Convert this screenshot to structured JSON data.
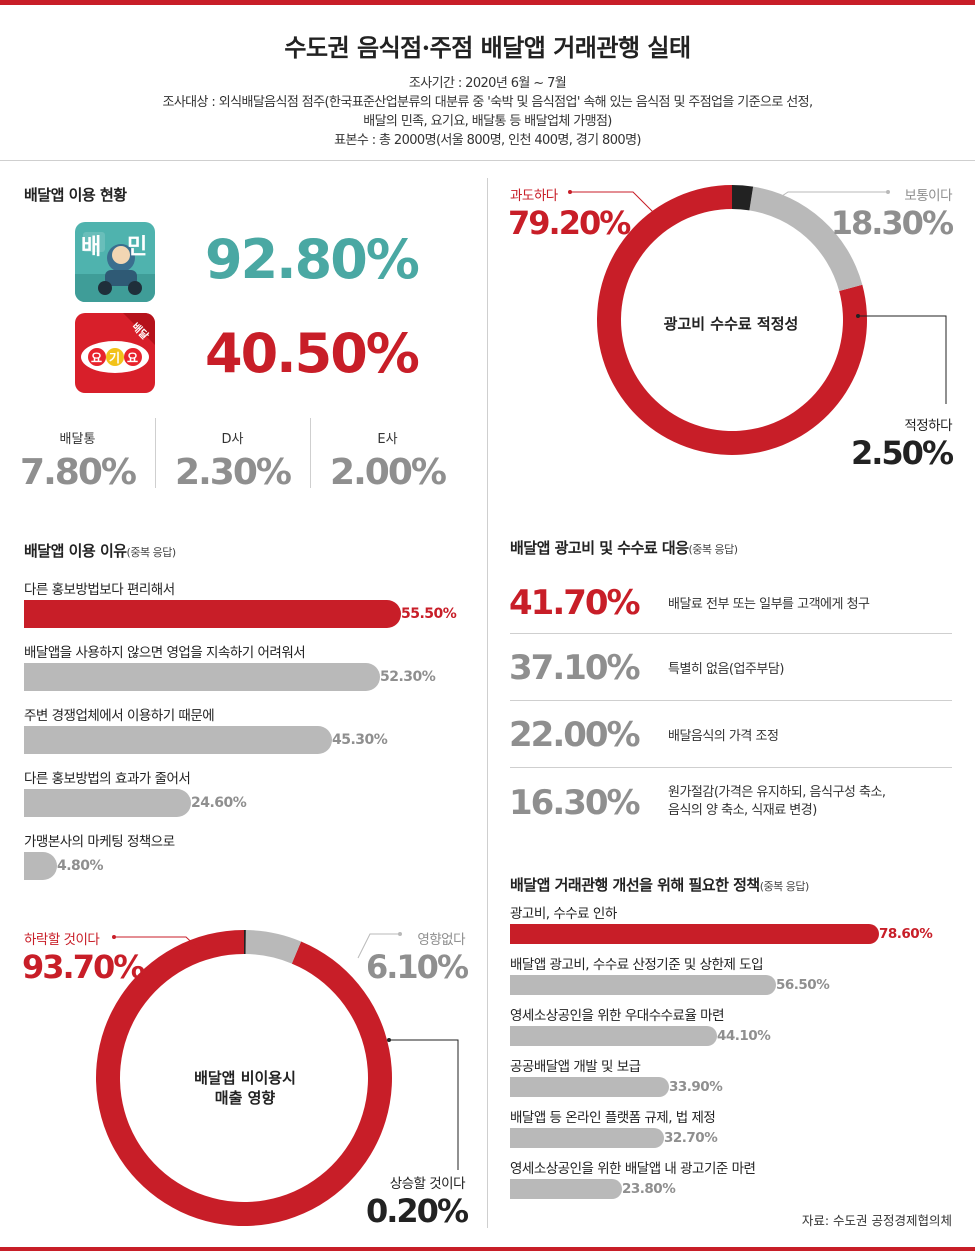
{
  "title": "수도권 음식점·주점 배달앱 거래관행 실태",
  "meta": {
    "period": "조사기간 : 2020년 6월 ~ 7월",
    "target_line1": "조사대상 : 외식배달음식점 점주(한국표준산업분류의 대분류 중 '숙박 및 음식점업' 속해 있는 음식점 및 주점업을 기준으로 선정,",
    "target_line2": "배달의 민족, 요기요, 배달통 등 배달업체 가맹점)",
    "sample": "표본수 : 총 2000명(서울 800명, 인천 400명, 경기 800명)"
  },
  "usage": {
    "title": "배달앱 이용 현황",
    "baemin": {
      "pct": "92.80%",
      "value": 92.8,
      "color": "#4aa8a3",
      "icon": "baemin-app-icon",
      "icon_text": "배민"
    },
    "yogiyo": {
      "pct": "40.50%",
      "value": 40.5,
      "color": "#c81e28",
      "icon": "yogiyo-app-icon",
      "icon_badge": "배달",
      "icon_chars": [
        "요",
        "기",
        "요"
      ]
    },
    "others": [
      {
        "label": "배달통",
        "pct": "7.80%",
        "value": 7.8
      },
      {
        "label": "D사",
        "pct": "2.30%",
        "value": 2.3
      },
      {
        "label": "E사",
        "pct": "2.00%",
        "value": 2.0
      }
    ]
  },
  "reasons": {
    "title": "배달앱 이용 이유",
    "note": "(중복 응답)"
  },
  "impact": {
    "center_line1": "배달앱 비이용시",
    "center_line2": "매출 영향",
    "fall": {
      "label": "하락할 것이다",
      "pct": "93.70%"
    },
    "none": {
      "label": "영향없다",
      "pct": "6.10%"
    },
    "rise": {
      "label": "상승할 것이다",
      "pct": "0.20%"
    }
  },
  "fee": {
    "center": "광고비 수수료 적정성",
    "excessive": {
      "label": "과도하다",
      "pct": "79.20%"
    },
    "normal": {
      "label": "보통이다",
      "pct": "18.30%"
    },
    "adequate": {
      "label": "적정하다",
      "pct": "2.50%"
    }
  },
  "response": {
    "title": "배달앱 광고비 및 수수료 대응",
    "note": "(중복 응답)",
    "items": [
      {
        "pct": "41.70%",
        "text1": "배달료 전부 또는 일부를 고객에게 청구",
        "text2": "",
        "color": "#c81e28"
      },
      {
        "pct": "37.10%",
        "text1": "특별히 없음(업주부담)",
        "text2": "",
        "color": "#8f8f8f"
      },
      {
        "pct": "22.00%",
        "text1": "배달음식의 가격 조정",
        "text2": "",
        "color": "#8f8f8f"
      },
      {
        "pct": "16.30%",
        "text1": "원가절감(가격은 유지하되, 음식구성 축소,",
        "text2": "음식의 양 축소, 식재료 변경)",
        "color": "#8f8f8f"
      }
    ]
  },
  "policy": {
    "title": "배달앱 거래관행 개선을 위해  필요한 정책",
    "note": "(중복 응답)"
  },
  "source": "자료: 수도권 공정경제협의체",
  "colors": {
    "red": "#c81e28",
    "gray": "#b9b9b9",
    "teal": "#4aa8a3",
    "dark": "#222222"
  },
  "chart_data": [
    {
      "type": "bar",
      "title": "배달앱 이용 현황",
      "categories": [
        "배달의 민족",
        "요기요",
        "배달통",
        "D사",
        "E사"
      ],
      "values": [
        92.8,
        40.5,
        7.8,
        2.3,
        2.0
      ]
    },
    {
      "type": "bar",
      "title": "배달앱 이용 이유",
      "categories": [
        "다른 홍보방법보다 편리해서",
        "배달앱을 사용하지 않으면 영업을 지속하기 어려워서",
        "주변 경쟁업체에서 이용하기 때문에",
        "다른 홍보방법의 효과가 줄어서",
        "가맹본사의 마케팅 정책으로"
      ],
      "values": [
        55.5,
        52.3,
        45.3,
        24.6,
        4.8
      ],
      "labels": [
        "55.50%",
        "52.30%",
        "45.30%",
        "24.60%",
        "4.80%"
      ]
    },
    {
      "type": "pie",
      "title": "배달앱 비이용시 매출 영향",
      "categories": [
        "하락할 것이다",
        "영향없다",
        "상승할 것이다"
      ],
      "values": [
        93.7,
        6.1,
        0.2
      ],
      "colors": [
        "#c81e28",
        "#b9b9b9",
        "#222222"
      ]
    },
    {
      "type": "pie",
      "title": "광고비 수수료 적정성",
      "categories": [
        "과도하다",
        "보통이다",
        "적정하다"
      ],
      "values": [
        79.2,
        18.3,
        2.5
      ],
      "colors": [
        "#c81e28",
        "#b9b9b9",
        "#222222"
      ]
    },
    {
      "type": "table",
      "title": "배달앱 광고비 및 수수료 대응",
      "categories": [
        "배달료 전부 또는 일부를 고객에게 청구",
        "특별히 없음(업주부담)",
        "배달음식의 가격 조정",
        "원가절감(가격은 유지하되, 음식구성 축소, 음식의 양 축소, 식재료 변경)"
      ],
      "values": [
        41.7,
        37.1,
        22.0,
        16.3
      ]
    },
    {
      "type": "bar",
      "title": "배달앱 거래관행 개선을 위해  필요한 정책",
      "categories": [
        "광고비, 수수료 인하",
        "배달앱 광고비, 수수료 산정기준 및 상한제 도입",
        "영세소상공인을 위한 우대수수료율 마련",
        "공공배달앱 개발 및 보급",
        "배달앱 등 온라인 플랫폼 규제, 법 제정",
        "영세소상공인을 위한 배달앱 내 광고기준 마련"
      ],
      "values": [
        78.6,
        56.5,
        44.1,
        33.9,
        32.7,
        23.8
      ],
      "labels": [
        "78.60%",
        "56.50%",
        "44.10%",
        "33.90%",
        "32.70%",
        "23.80%"
      ]
    }
  ]
}
